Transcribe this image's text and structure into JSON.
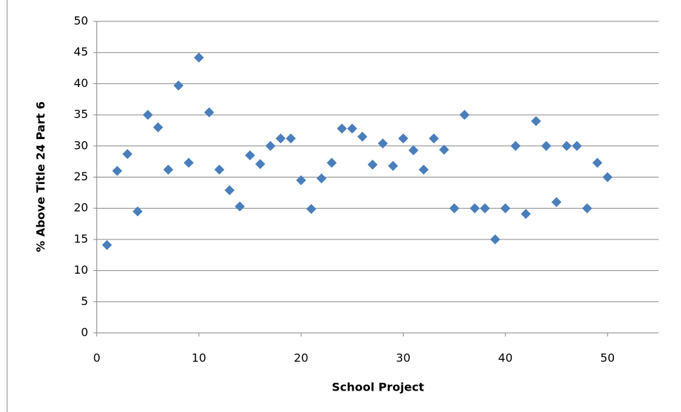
{
  "chart_data": {
    "type": "scatter",
    "x_label": "School Project",
    "y_label": "% Above Title 24 Part 6",
    "xlim": [
      0,
      55
    ],
    "xticks": [
      0,
      10,
      20,
      30,
      40,
      50
    ],
    "ylim": [
      0,
      50
    ],
    "yticks": [
      0,
      5,
      10,
      15,
      20,
      25,
      30,
      35,
      40,
      45,
      50
    ],
    "grid": true,
    "color": "#4a7ebb",
    "x": [
      1,
      2,
      3,
      4,
      5,
      6,
      7,
      8,
      9,
      10,
      11,
      12,
      13,
      14,
      15,
      16,
      17,
      18,
      19,
      20,
      21,
      22,
      23,
      24,
      25,
      26,
      27,
      28,
      29,
      30,
      31,
      32,
      33,
      34,
      35,
      36,
      37,
      38,
      39,
      40,
      41,
      42,
      43,
      44,
      45,
      46,
      47,
      48,
      49,
      50
    ],
    "values": [
      14.1,
      26,
      28.7,
      19.5,
      35,
      33,
      26.2,
      39.7,
      27.3,
      44.2,
      35.4,
      26.2,
      22.9,
      20.3,
      28.5,
      27.1,
      30,
      31.2,
      31.2,
      24.5,
      19.9,
      24.8,
      27.3,
      32.8,
      32.8,
      31.5,
      27,
      30.4,
      26.8,
      31.2,
      29.3,
      26.2,
      31.2,
      29.4,
      20,
      35,
      20,
      20,
      15,
      20,
      30,
      19.1,
      34,
      30,
      21,
      30,
      30,
      20,
      27.3,
      25
    ]
  }
}
